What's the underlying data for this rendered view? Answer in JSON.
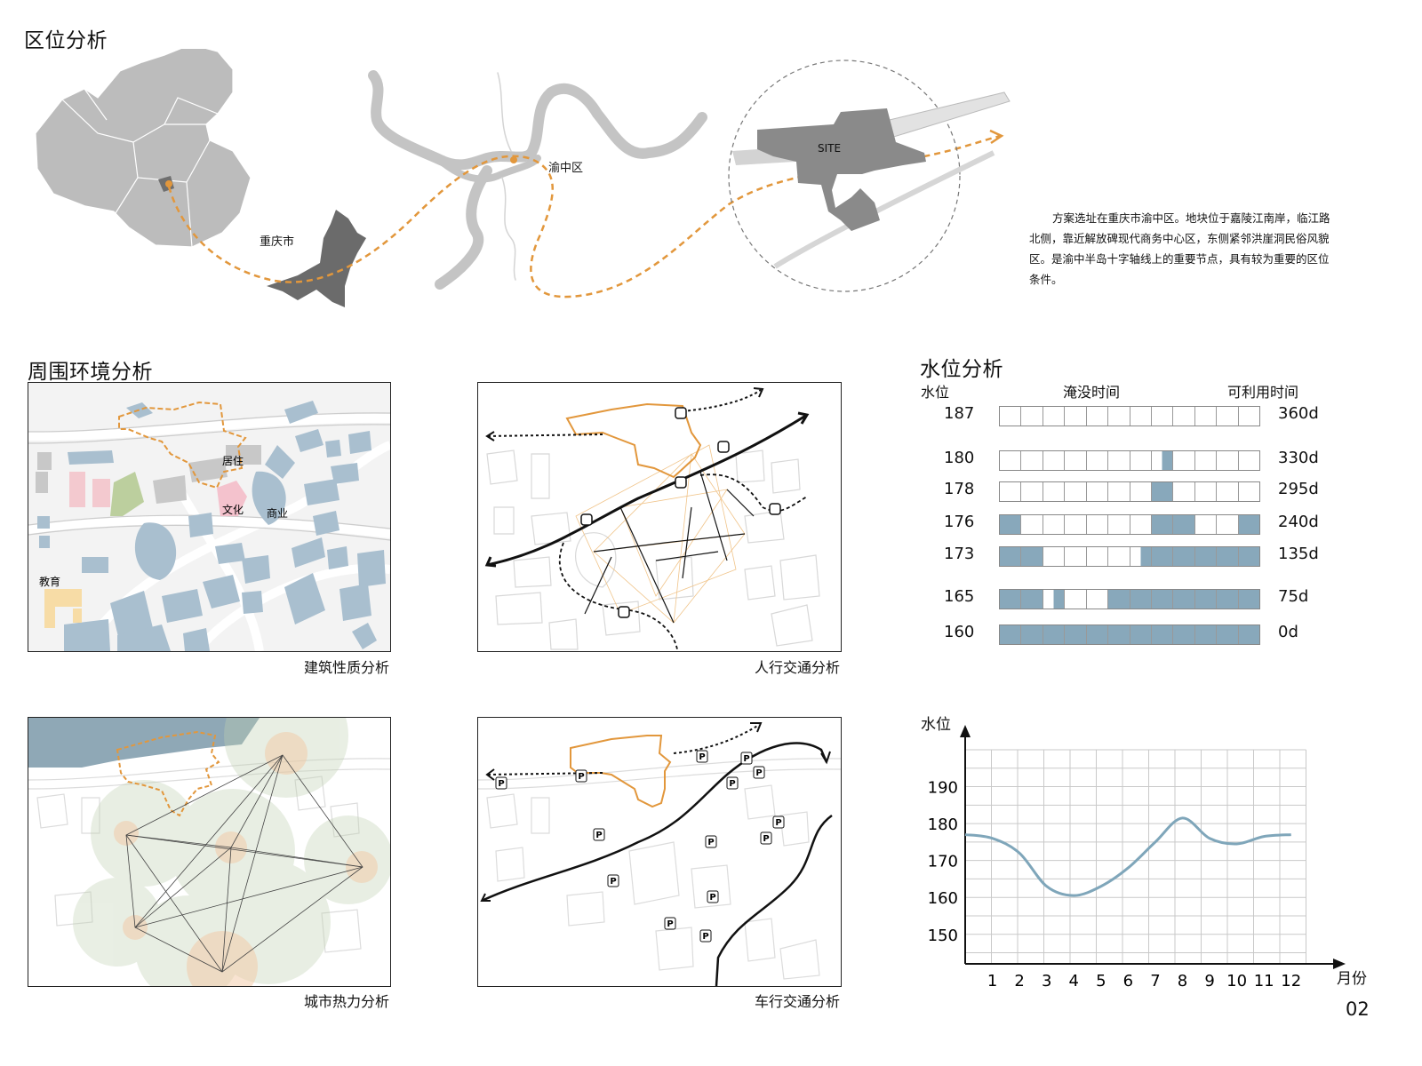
{
  "location": {
    "title": "区位分析",
    "label_chongqing": "重庆市",
    "label_yuzhong": "渝中区",
    "label_site": "SITE",
    "description": "方案选址在重庆市渝中区。地块位于嘉陵江南岸，临江路北侧，靠近解放碑现代商务中心区，东侧紧邻洪崖洞民俗风貌区。是渝中半岛十字轴线上的重要节点，具有较为重要的区位条件。"
  },
  "surroundings": {
    "title": "周围环境分析",
    "panels": [
      {
        "caption": "建筑性质分析",
        "labels": [
          "居住",
          "文化",
          "商业",
          "教育"
        ]
      },
      {
        "caption": "人行交通分析"
      },
      {
        "caption": "城市热力分析"
      },
      {
        "caption": "车行交通分析",
        "parking_symbol": "P"
      }
    ]
  },
  "water_level": {
    "title": "水位分析",
    "headers": {
      "level": "水位",
      "months": "淹没时间",
      "days": "可利用时间"
    },
    "rows": [
      {
        "level": "187",
        "days": "360d",
        "months": [
          0,
          0,
          0,
          0,
          0,
          0,
          0,
          0,
          0,
          0,
          0,
          0
        ]
      },
      {
        "level": "180",
        "days": "330d",
        "months": [
          0,
          0,
          0,
          0,
          0,
          0,
          0,
          0.5,
          0,
          0,
          0,
          0
        ]
      },
      {
        "level": "178",
        "days": "295d",
        "months": [
          0,
          0,
          0,
          0,
          0,
          0,
          0,
          1,
          0,
          0,
          0,
          0
        ]
      },
      {
        "level": "176",
        "days": "240d",
        "months": [
          1,
          0,
          0,
          0,
          0,
          0,
          0,
          1,
          1,
          0,
          0,
          1
        ]
      },
      {
        "level": "173",
        "days": "135d",
        "months": [
          1,
          1,
          0,
          0,
          0,
          0,
          0.5,
          1,
          1,
          1,
          1,
          1
        ]
      },
      {
        "level": "165",
        "days": "75d",
        "months": [
          1,
          1,
          0.5,
          0,
          0,
          1,
          1,
          1,
          1,
          1,
          1,
          1
        ]
      },
      {
        "level": "160",
        "days": "0d",
        "months": [
          1,
          1,
          1,
          1,
          1,
          1,
          1,
          1,
          1,
          1,
          1,
          1
        ]
      }
    ],
    "accent_color": "#88a8bb"
  },
  "chart_data": {
    "type": "line",
    "ylabel": "水位",
    "xlabel": "月份",
    "x_ticks": [
      "1",
      "2",
      "3",
      "4",
      "5",
      "6",
      "7",
      "8",
      "9",
      "10",
      "11",
      "12"
    ],
    "y_ticks": [
      "150",
      "160",
      "170",
      "180",
      "190"
    ],
    "ylim": [
      142,
      200
    ],
    "xlim": [
      0,
      12.5
    ],
    "grid": true,
    "series": [
      {
        "line_color": "#7fa6ba",
        "x": [
          0,
          1,
          2,
          3,
          4,
          5,
          6,
          7,
          8,
          9,
          10,
          11,
          12
        ],
        "y": [
          177,
          176,
          172,
          163,
          160.5,
          163,
          168,
          175,
          181.5,
          176,
          174.5,
          176.5,
          177
        ]
      }
    ]
  },
  "page_number": "02"
}
